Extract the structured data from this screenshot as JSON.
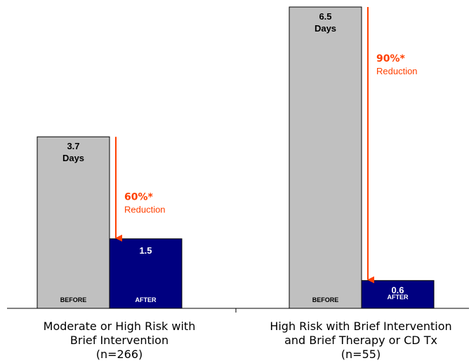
{
  "chart_data": {
    "type": "bar",
    "unit": "Days",
    "bar_labels": [
      "BEFORE",
      "AFTER"
    ],
    "groups": [
      {
        "label_lines": [
          "Moderate or High Risk with",
          "Brief Intervention",
          "(n=266)"
        ],
        "before": 3.7,
        "after": 1.5,
        "before_label": "3.7",
        "after_label": "1.5",
        "reduction_pct": "60%*",
        "reduction_text": "Reduction"
      },
      {
        "label_lines": [
          "High Risk with Brief Intervention",
          "and Brief Therapy or CD Tx",
          "(n=55)"
        ],
        "before": 6.5,
        "after": 0.6,
        "before_label": "6.5",
        "after_label": "0.6",
        "reduction_pct": "90%*",
        "reduction_text": "Reduction"
      }
    ],
    "ylim": [
      0,
      6.5
    ],
    "grid": false,
    "colors": {
      "before": "#c0c0c0",
      "after": "#000080",
      "arrow": "#ff4000",
      "reduction_text": "#ff4000",
      "axis": "#000000"
    }
  }
}
